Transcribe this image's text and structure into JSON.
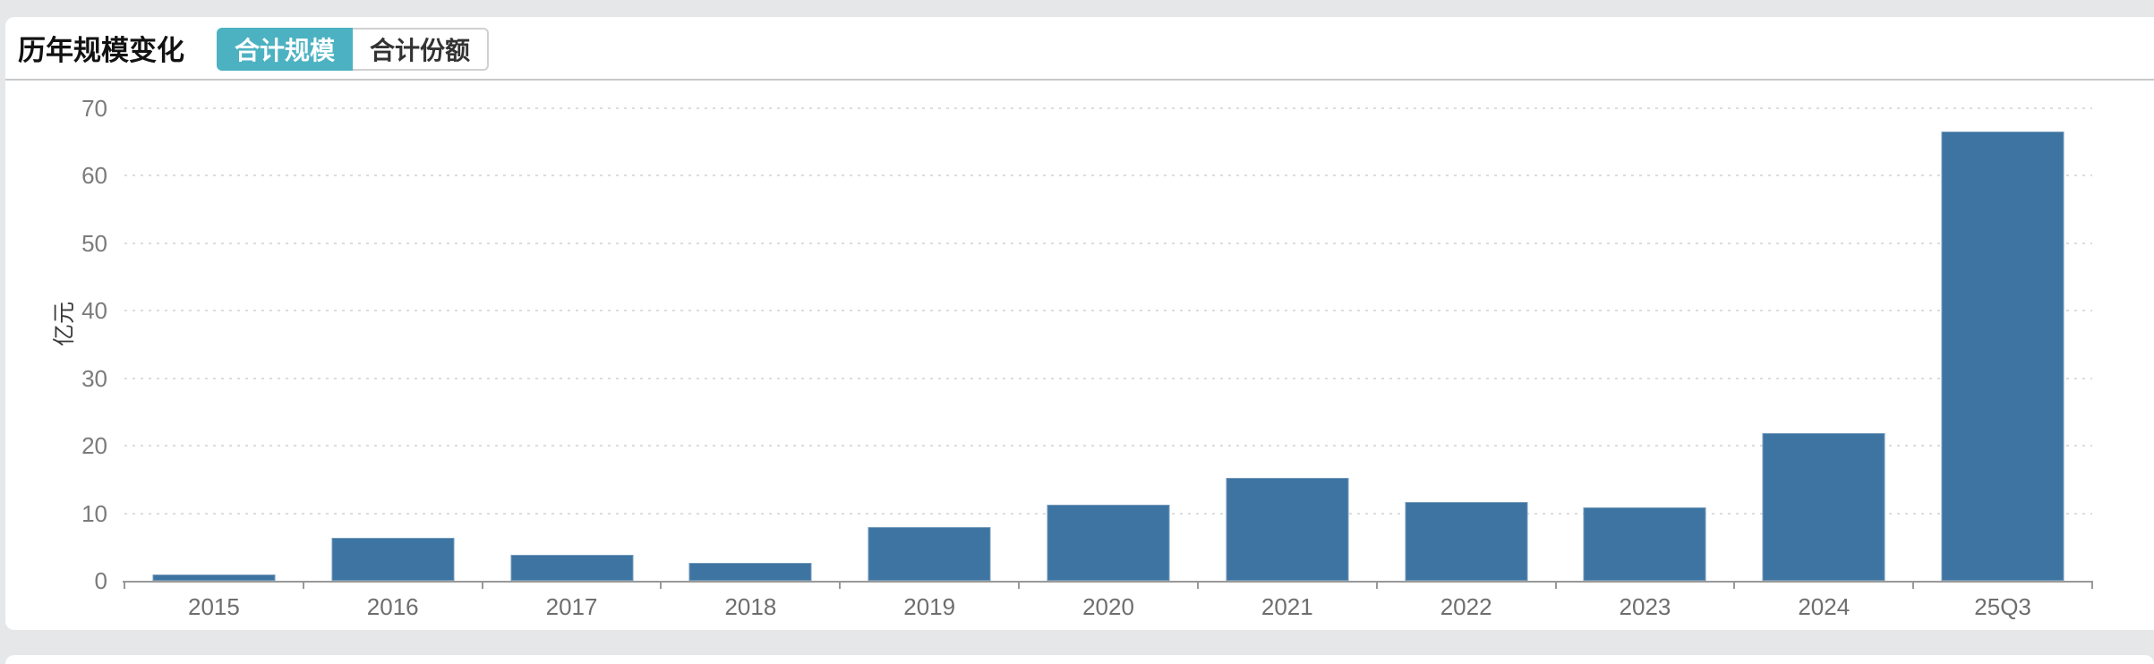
{
  "header": {
    "title": "历年规模变化",
    "tabs": [
      {
        "label": "合计规模",
        "active": true
      },
      {
        "label": "合计份额",
        "active": false
      }
    ]
  },
  "colors": {
    "page_background": "#e5e7e9",
    "card_background": "#ffffff",
    "accent_teal": "#4cb2c2",
    "bar": "#3e74a1",
    "axis_line": "#999999",
    "gridline": "#dcdcdc",
    "divider": "#c6c8ca",
    "x_tick_label": "#6e6e6e",
    "y_tick_label": "#7b7b7b"
  },
  "chart_data": {
    "type": "bar",
    "categories": [
      "2015",
      "2016",
      "2017",
      "2018",
      "2019",
      "2020",
      "2021",
      "2022",
      "2023",
      "2024",
      "25Q3"
    ],
    "values": [
      0.9,
      6.3,
      3.8,
      2.6,
      7.9,
      11.3,
      15.2,
      11.7,
      10.9,
      21.9,
      66.6
    ],
    "title": "历年规模变化",
    "xlabel": "",
    "ylabel": "亿元",
    "ylim": [
      0,
      70
    ],
    "yticks": [
      0,
      10,
      20,
      30,
      40,
      50,
      60,
      70
    ],
    "grid": "horizontal-dotted",
    "legend_position": "none",
    "bar_color": "#3e74a1"
  }
}
